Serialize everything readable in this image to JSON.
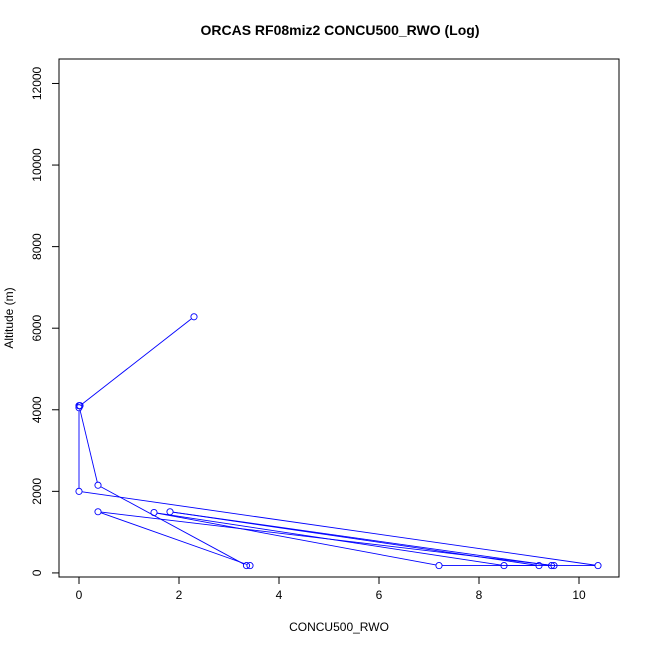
{
  "chart_data": {
    "type": "line",
    "title": "ORCAS RF08miz2 CONCU500_RWO (Log)",
    "xlabel": "CONCU500_RWO",
    "ylabel": "Altitude (m)",
    "xlim": [
      -0.4,
      10.8
    ],
    "ylim": [
      -100,
      12600
    ],
    "x_ticks": [
      0,
      2,
      4,
      6,
      8,
      10
    ],
    "y_ticks": [
      0,
      2000,
      4000,
      6000,
      8000,
      10000,
      12000
    ],
    "grid": false,
    "legend": "none",
    "series_color": "#0000ff",
    "points": [
      {
        "x": 2.3,
        "y": 6280
      },
      {
        "x": 0.02,
        "y": 4100
      },
      {
        "x": 0.0,
        "y": 4100
      },
      {
        "x": 0.38,
        "y": 2150
      },
      {
        "x": 3.35,
        "y": 180
      },
      {
        "x": 3.42,
        "y": 180
      },
      {
        "x": 0.38,
        "y": 1500
      },
      {
        "x": 9.5,
        "y": 180
      },
      {
        "x": 9.45,
        "y": 180
      },
      {
        "x": 1.82,
        "y": 1500
      },
      {
        "x": 9.2,
        "y": 180
      },
      {
        "x": 8.5,
        "y": 180
      },
      {
        "x": 1.5,
        "y": 1480
      },
      {
        "x": 7.2,
        "y": 180
      },
      {
        "x": 10.38,
        "y": 180
      },
      {
        "x": 0.0,
        "y": 2000
      },
      {
        "x": 0.0,
        "y": 4050
      }
    ]
  }
}
